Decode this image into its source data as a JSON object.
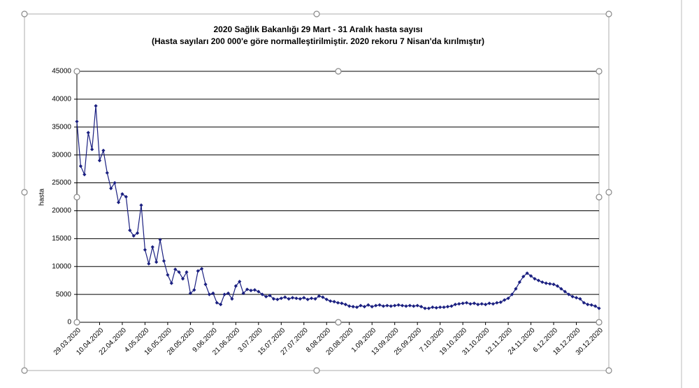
{
  "chart_data": {
    "type": "line",
    "title": "2020 Sağlık Bakanlığı 29 Mart - 31 Aralık hasta sayısı",
    "subtitle": "(Hasta sayıları 200 000'e göre normalleştirilmiştir. 2020 rekoru 7 Nisan'da kırılmıştır)",
    "y_label": "hasta",
    "color": "#1a1f80",
    "ylim": [
      0,
      45000
    ],
    "yticks": [
      0,
      5000,
      10000,
      15000,
      20000,
      25000,
      30000,
      35000,
      40000,
      45000
    ],
    "grid": true,
    "categories": [
      "29.03.2020",
      null,
      null,
      null,
      null,
      null,
      "10.04.2020",
      null,
      null,
      null,
      null,
      null,
      "22.04.2020",
      null,
      null,
      null,
      null,
      null,
      "4.05.2020",
      null,
      null,
      null,
      null,
      null,
      "16.05.2020",
      null,
      null,
      null,
      null,
      null,
      "28.05.2020",
      null,
      null,
      null,
      null,
      null,
      "9.06.2020",
      null,
      null,
      null,
      null,
      null,
      "21.06.2020",
      null,
      null,
      null,
      null,
      null,
      "3.07.2020",
      null,
      null,
      null,
      null,
      null,
      "15.07.2020",
      null,
      null,
      null,
      null,
      null,
      "27.07.2020",
      null,
      null,
      null,
      null,
      null,
      "8.08.2020",
      null,
      null,
      null,
      null,
      null,
      "20.08.2020",
      null,
      null,
      null,
      null,
      null,
      "1.09.2020",
      null,
      null,
      null,
      null,
      null,
      "13.09.2020",
      null,
      null,
      null,
      null,
      null,
      "25.09.2020",
      null,
      null,
      null,
      null,
      null,
      "7.10.2020",
      null,
      null,
      null,
      null,
      null,
      "19.10.2020",
      null,
      null,
      null,
      null,
      null,
      "31.10.2020",
      null,
      null,
      null,
      null,
      null,
      "12.11.2020",
      null,
      null,
      null,
      null,
      null,
      "24.11.2020",
      null,
      null,
      null,
      null,
      null,
      "6.12.2020",
      null,
      null,
      null,
      null,
      null,
      "18.12.2020",
      null,
      null,
      null,
      null,
      null,
      "30.12.2020"
    ],
    "values": [
      36000,
      28000,
      26500,
      34000,
      31000,
      38800,
      29000,
      30800,
      26800,
      24000,
      25000,
      21500,
      23000,
      22500,
      16500,
      15500,
      16000,
      21000,
      13000,
      10500,
      13500,
      10800,
      14800,
      11000,
      8500,
      7000,
      9500,
      9000,
      7800,
      9000,
      5200,
      5800,
      9200,
      9600,
      6800,
      5000,
      5200,
      3500,
      3200,
      5000,
      5200,
      4200,
      6500,
      7300,
      5200,
      5900,
      5700,
      5800,
      5500,
      5000,
      4600,
      4800,
      4200,
      4100,
      4300,
      4500,
      4200,
      4400,
      4300,
      4200,
      4400,
      4100,
      4300,
      4200,
      4700,
      4500,
      4100,
      3800,
      3700,
      3500,
      3400,
      3200,
      2900,
      2800,
      2700,
      3000,
      2800,
      3100,
      2800,
      3000,
      3100,
      2900,
      3000,
      2900,
      3000,
      3100,
      3000,
      2900,
      3000,
      2900,
      3000,
      2800,
      2500,
      2500,
      2700,
      2600,
      2700,
      2700,
      2800,
      2900,
      3200,
      3300,
      3400,
      3500,
      3300,
      3400,
      3200,
      3300,
      3200,
      3400,
      3300,
      3500,
      3600,
      4000,
      4300,
      5000,
      6000,
      7200,
      8200,
      8800,
      8300,
      7800,
      7500,
      7200,
      7000,
      6900,
      6800,
      6500,
      6000,
      5500,
      5000,
      4600,
      4400,
      4200,
      3500,
      3200,
      3100,
      2900,
      2500
    ]
  }
}
